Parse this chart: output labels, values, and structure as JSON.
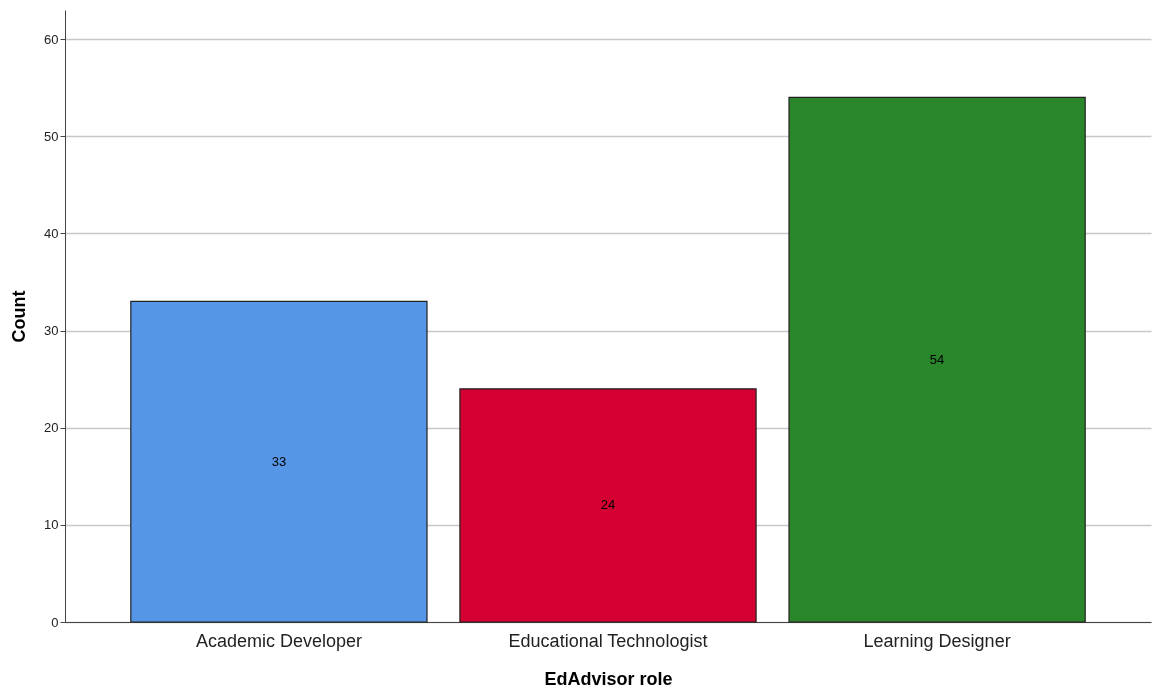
{
  "chart_data": {
    "type": "bar",
    "xlabel": "EdAdvisor role",
    "ylabel": "Count",
    "categories": [
      "Academic Developer",
      "Educational Technologist",
      "Learning Designer"
    ],
    "values": [
      33,
      24,
      54
    ],
    "colors": [
      "#5596e6",
      "#d50032",
      "#2a862a"
    ],
    "ylim": [
      0,
      63
    ],
    "yticks": [
      0,
      10,
      20,
      30,
      40,
      50,
      60
    ],
    "grid": "y",
    "data_labels": true
  }
}
